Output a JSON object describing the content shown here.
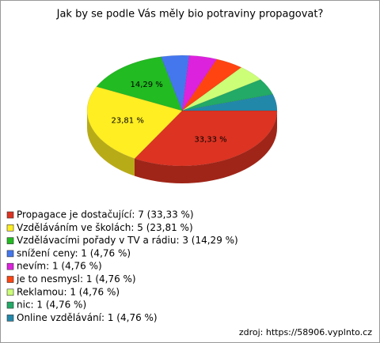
{
  "chart_data": {
    "type": "pie",
    "title": "Jak by se podle Vás měly bio potraviny propagovat?",
    "categories": [
      "Propagace je dostačující: 7 (33,33 %)",
      "Vzděláváním ve školách: 5 (23,81 %)",
      "Vzdělávacími pořady v TV a rádiu: 3 (14,29 %)",
      "snížení ceny: 1 (4,76 %)",
      "nevím: 1 (4,76 %)",
      "je to nesmysl: 1 (4,76 %)",
      "Reklamou: 1 (4,76 %)",
      "nic: 1 (4,76 %)",
      "Online vzdělávání: 1 (4,76 %)"
    ],
    "values": [
      33.33,
      23.81,
      14.29,
      4.76,
      4.76,
      4.76,
      4.76,
      4.76,
      4.76
    ],
    "value_labels": [
      "33,33 %",
      "23,81 %",
      "14,29 %",
      null,
      null,
      null,
      null,
      null,
      null
    ],
    "colors": [
      "#dd3322",
      "#ffee22",
      "#22bb22",
      "#4477ee",
      "#dd22dd",
      "#ff4411",
      "#ccff77",
      "#22aa66",
      "#2288aa"
    ],
    "source": "zdroj: https://58906.vyplnto.cz"
  }
}
